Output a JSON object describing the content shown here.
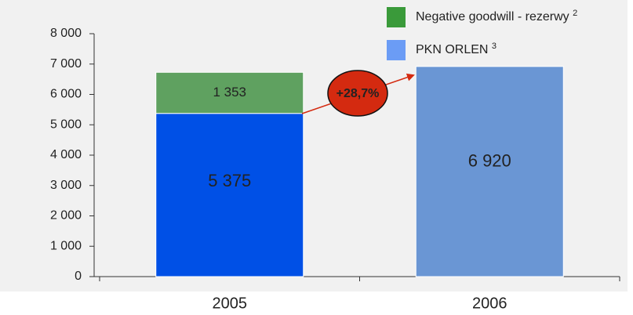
{
  "chart_data": {
    "type": "stacked_bar",
    "categories": [
      "2005",
      "2006"
    ],
    "series": [
      {
        "name": "PKN ORLEN",
        "superscript": "3",
        "color": "#6b9cf5",
        "bar_colors": [
          "#0050e6",
          "#6a96d4"
        ],
        "values": [
          5375,
          6920
        ],
        "value_labels": [
          "5 375",
          "6 920"
        ]
      },
      {
        "name": "Negative goodwill  - rezerwy",
        "superscript": "2",
        "color": "#3a9a3a",
        "bar_colors": [
          "#5fa160",
          null
        ],
        "values": [
          1353,
          null
        ],
        "value_labels": [
          "1 353",
          null
        ]
      }
    ],
    "annotation": "+28,7%",
    "ylim": [
      0,
      8000
    ],
    "yticks": [
      0,
      {
        "value": 1000,
        "label": "1 000"
      },
      {
        "value": 2000,
        "label": "2 000"
      },
      {
        "value": 3000,
        "label": "3 000"
      },
      {
        "value": 4000,
        "label": "4 000"
      },
      {
        "value": 5000,
        "label": "5 000"
      },
      {
        "value": 6000,
        "label": "6 000"
      },
      {
        "value": 7000,
        "label": "7 000"
      },
      {
        "value": 8000,
        "label": "8 000"
      }
    ]
  }
}
